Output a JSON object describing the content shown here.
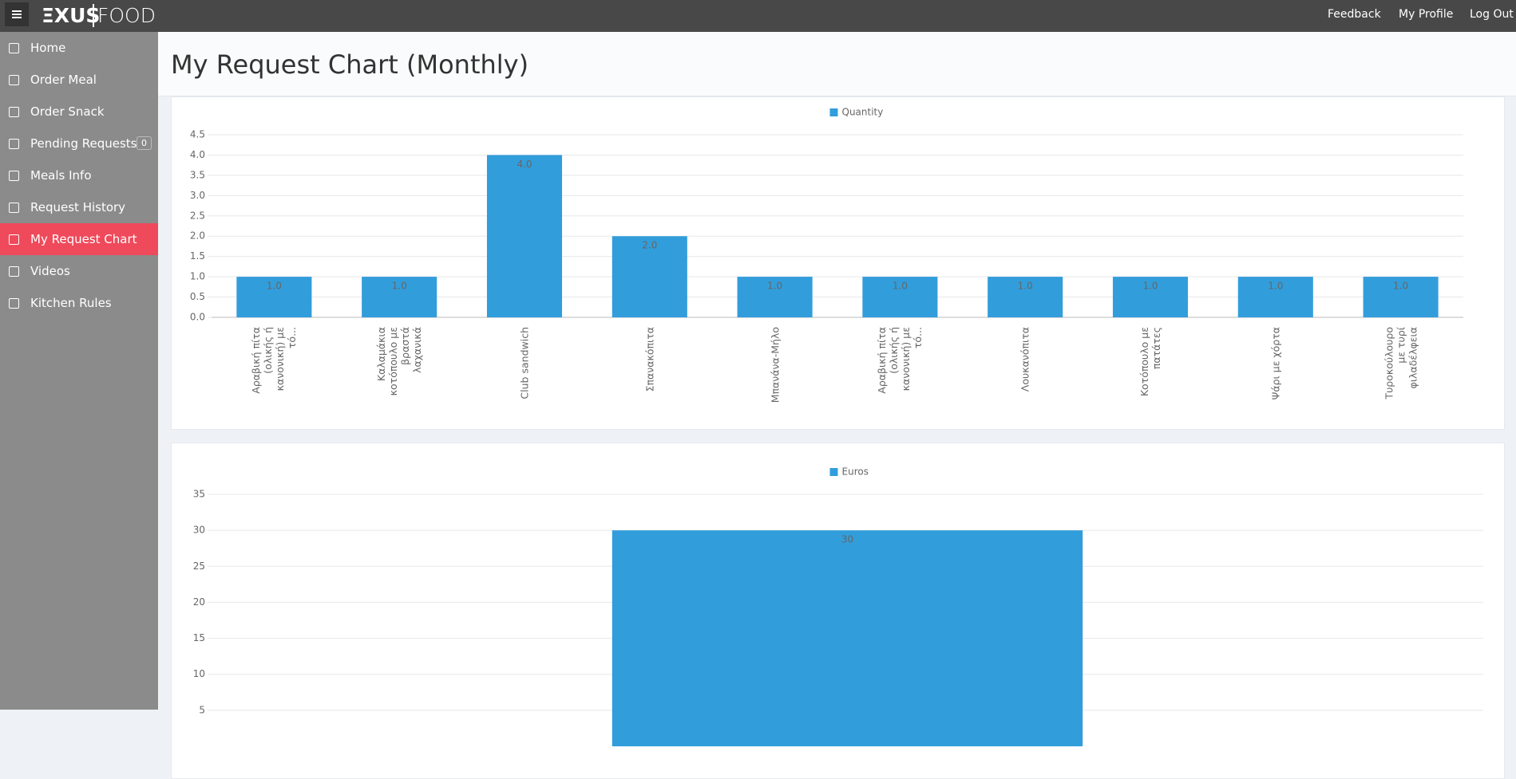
{
  "topbar": {
    "logo": "ΞXUS",
    "logo_suffix": "FOOD",
    "links": [
      "Feedback",
      "My Profile",
      "Log Out"
    ]
  },
  "sidebar": {
    "items": [
      "Home",
      "Order Meal",
      "Order Snack",
      "Pending Requests",
      "Meals Info",
      "Request History",
      "My Request Chart",
      "Videos",
      "Kitchen Rules"
    ],
    "pending_count": 0,
    "active": 6
  },
  "header": {
    "title": "My Request Chart (Monthly)"
  },
  "chart_data": [
    {
      "type": "bar",
      "categories": [
        "Αραβική πίτα (ολικής ή κανονική) με τό...",
        "Καλαμάκια κοτόπουλο με βραστά λαχανικά",
        "Club sandwich",
        "Σπανακόπιτα",
        "Μπανάνα-Μήλο",
        "Αραβική πίτα (ολικής ή κανονική) με τό...",
        "Λουκανόπιτα",
        "Κοτόπουλο με πατάτες",
        "Ψάρι με χόρτα",
        "Τυροκούλουρο με τυρί φιλαδέλφεια"
      ],
      "series": [
        {
          "name": "Quantity",
          "color": "#329ddb",
          "values": [
            1,
            1,
            4,
            2,
            1,
            1,
            1,
            1,
            1,
            1
          ],
          "value_labels": [
            "1.0",
            "1.0",
            "4.0",
            "2.0",
            "1.0",
            "1.0",
            "1.0",
            "1.0",
            "1.0",
            "1.0"
          ]
        }
      ],
      "ylim": [
        0,
        4.5
      ],
      "yticks": [
        {
          "value": 0,
          "label": "0.0"
        },
        0.5,
        {
          "value": 1,
          "label": "1.0"
        },
        1.5,
        {
          "value": 2,
          "label": "2.0"
        },
        2.5,
        {
          "value": 3,
          "label": "3.0"
        },
        3.5,
        {
          "value": 4,
          "label": "4.0"
        },
        4.5
      ],
      "grid": true
    },
    {
      "type": "bar",
      "categories": [
        null
      ],
      "series": [
        {
          "name": "Euros",
          "color": "#329ddb",
          "values": [
            30
          ]
        }
      ],
      "ylim": [
        0,
        35
      ],
      "yticks": [
        5,
        10,
        15,
        20,
        25,
        30,
        35
      ],
      "grid": true
    }
  ]
}
